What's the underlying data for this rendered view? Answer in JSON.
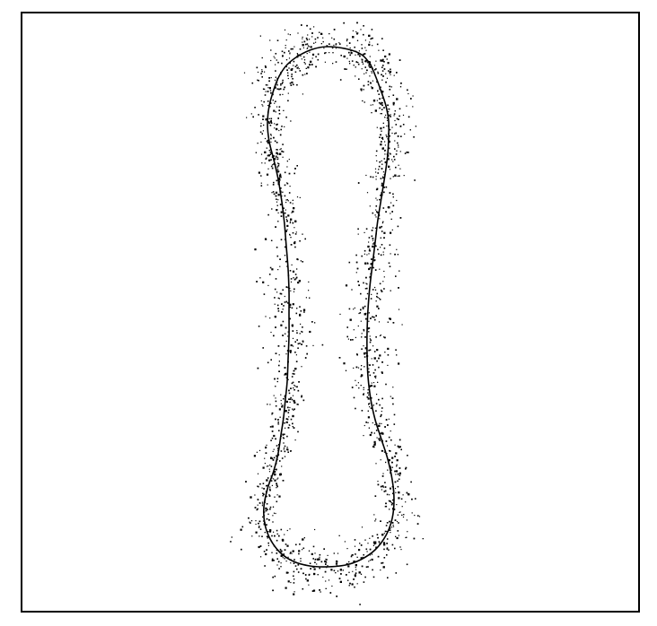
{
  "figure": {
    "title": "",
    "caption": "",
    "frame_color": "#000000",
    "background_color": "#ffffff",
    "contour_color": "#000000",
    "point_color": "#000000",
    "elements": [
      "plot-frame",
      "contour-curve",
      "point-cloud"
    ]
  }
}
